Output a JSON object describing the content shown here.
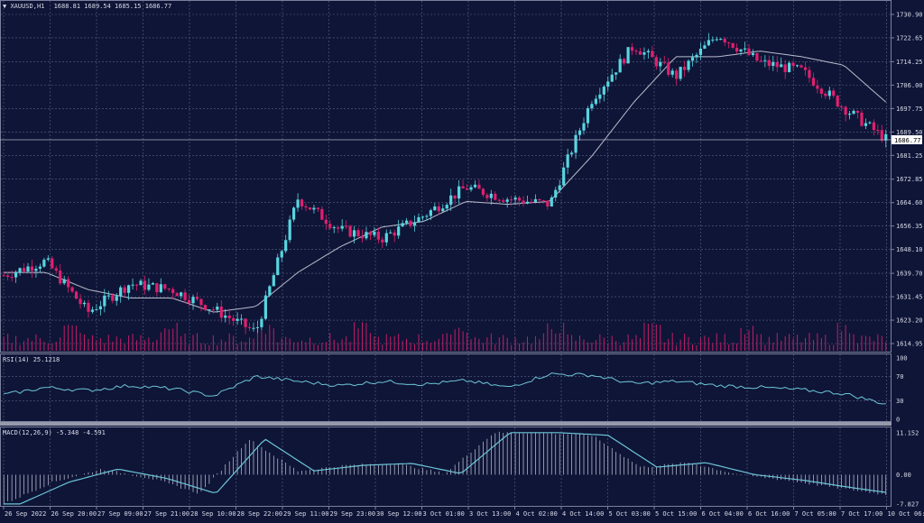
{
  "header": {
    "symbol": "XAUUSD,H1",
    "ohlc": "1688.81 1689.54 1685.15 1686.77",
    "triangle_icon": "dropdown-triangle-icon"
  },
  "price_panel": {
    "current_price": "1686.77",
    "y_ticks": [
      "1730.90",
      "1722.65",
      "1714.25",
      "1706.00",
      "1697.75",
      "1689.50",
      "1681.25",
      "1672.85",
      "1664.60",
      "1656.35",
      "1648.10",
      "1639.70",
      "1631.45",
      "1623.20",
      "1614.95"
    ]
  },
  "rsi_panel": {
    "label": "RSI(14) 25.1218",
    "y_ticks": [
      "100",
      "70",
      "30",
      "0"
    ]
  },
  "macd_panel": {
    "label": "MACD(12,26,9) -5.348 -4.591",
    "y_ticks": [
      "11.152",
      "0.00",
      "-7.827"
    ]
  },
  "x_axis": {
    "labels": [
      "26 Sep 2022",
      "26 Sep 20:00",
      "27 Sep 09:00",
      "27 Sep 21:00",
      "28 Sep 10:00",
      "28 Sep 22:00",
      "29 Sep 11:00",
      "29 Sep 23:00",
      "30 Sep 12:00",
      "3 Oct 01:00",
      "3 Oct 13:00",
      "4 Oct 02:00",
      "4 Oct 14:00",
      "5 Oct 03:00",
      "5 Oct 15:00",
      "6 Oct 04:00",
      "6 Oct 16:00",
      "7 Oct 05:00",
      "7 Oct 17:00",
      "10 Oct 06:00"
    ]
  },
  "colors": {
    "background": "#0f1537",
    "grid": "#5b6386",
    "bull": "#58d6e0",
    "bear": "#e0206e",
    "ma": "#b9bccb",
    "volume": "#c21e67",
    "rsi": "#6cc6d8",
    "macd": "#6cc6d8"
  },
  "chart_data": {
    "type": "line",
    "symbol": "XAUUSD",
    "timeframe": "H1",
    "last_close": 1686.77,
    "price_ylim": [
      1614.95,
      1730.9
    ],
    "ma_anchors": [
      1640,
      1640,
      1634,
      1631,
      1631,
      1626,
      1628,
      1640,
      1649,
      1656,
      1658,
      1665,
      1664,
      1665,
      1681,
      1700,
      1716,
      1716,
      1718,
      1716,
      1713,
      1700
    ],
    "close_anchors": [
      1639,
      1644,
      1626,
      1636,
      1634,
      1627,
      1619,
      1666,
      1655,
      1652,
      1660,
      1670,
      1666,
      1664,
      1701,
      1720,
      1709,
      1724,
      1714,
      1711,
      1698,
      1687
    ],
    "rsi_anchors": [
      40,
      52,
      47,
      55,
      50,
      38,
      70,
      62,
      55,
      62,
      57,
      63,
      52,
      74,
      72,
      58,
      62,
      55,
      52,
      48,
      42,
      25
    ],
    "macd_anchors": [
      -7.8,
      -2,
      1.5,
      -1,
      -5,
      9.5,
      1,
      2.5,
      3,
      0.3,
      11.2,
      11.2,
      10.5,
      2,
      3.2,
      0,
      -1.5,
      -3.5,
      -5.3
    ],
    "rsi_ylim": [
      0,
      100
    ],
    "macd_ylim": [
      -7.827,
      11.152
    ]
  }
}
